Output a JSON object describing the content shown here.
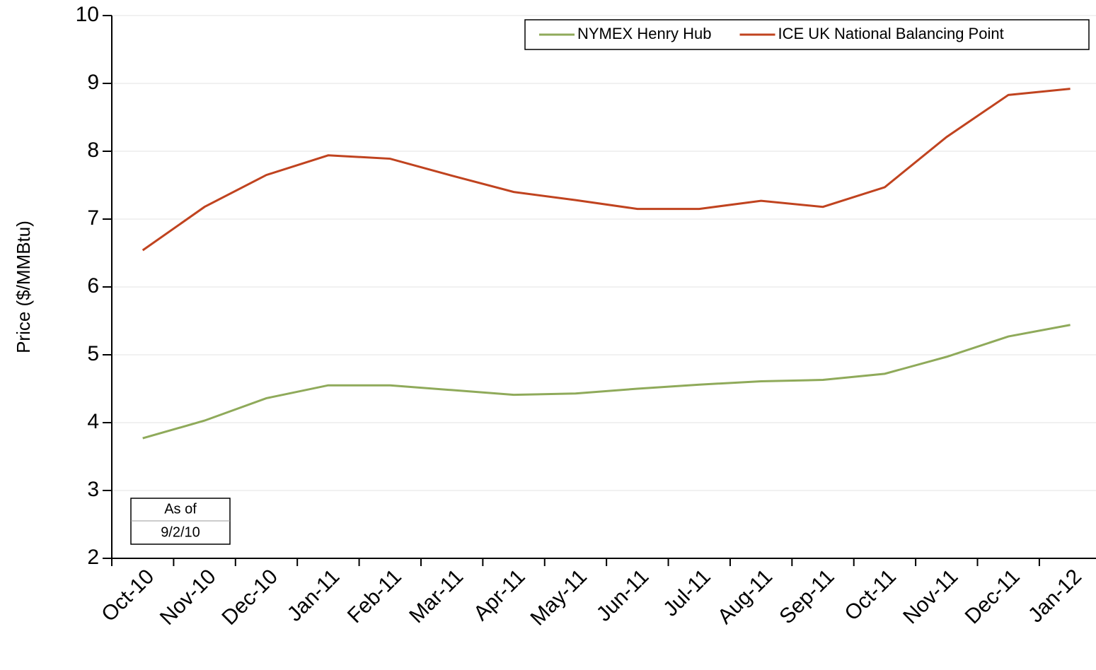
{
  "chart_data": {
    "type": "line",
    "y_label": "Price ($/MMBtu)",
    "categories": [
      "Oct-10",
      "Nov-10",
      "Dec-10",
      "Jan-11",
      "Feb-11",
      "Mar-11",
      "Apr-11",
      "May-11",
      "Jun-11",
      "Jul-11",
      "Aug-11",
      "Sep-11",
      "Oct-11",
      "Nov-11",
      "Dec-11",
      "Jan-12"
    ],
    "series": [
      {
        "name": "NYMEX Henry Hub",
        "color": "#8faa5a",
        "values": [
          3.77,
          4.03,
          4.36,
          4.55,
          4.55,
          4.48,
          4.41,
          4.43,
          4.5,
          4.56,
          4.61,
          4.63,
          4.72,
          4.97,
          5.27,
          5.44
        ]
      },
      {
        "name": "ICE UK National Balancing Point",
        "color": "#c0431f",
        "values": [
          6.54,
          7.18,
          7.65,
          7.94,
          7.89,
          7.64,
          7.4,
          7.28,
          7.15,
          7.15,
          7.27,
          7.18,
          7.47,
          8.21,
          8.83,
          8.92
        ]
      }
    ],
    "ylim": [
      2,
      10
    ],
    "yticks": [
      2,
      3,
      4,
      5,
      6,
      7,
      8,
      9,
      10
    ],
    "grid": true,
    "legend": "top-right",
    "annotations": [
      "As of",
      "9/2/10"
    ]
  }
}
